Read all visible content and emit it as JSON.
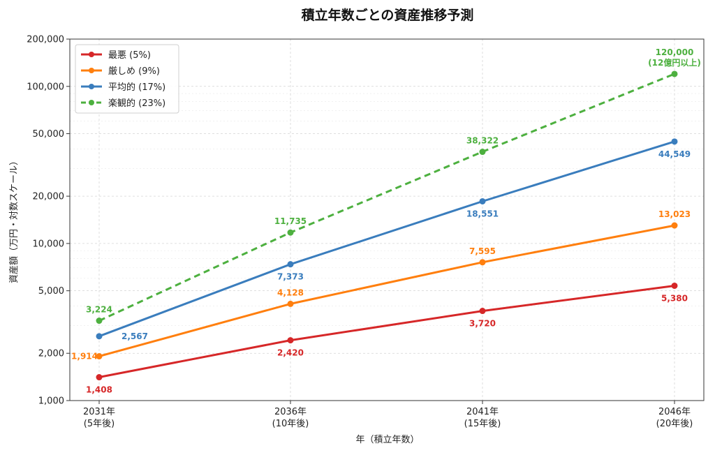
{
  "chart_data": {
    "type": "line",
    "title": "積立年数ごとの資産推移予測",
    "xlabel": "年（積立年数）",
    "ylabel": "資産額（万円・対数スケール）",
    "yscale": "log",
    "ylim": [
      1000,
      200000
    ],
    "yticks": [
      1000,
      2000,
      5000,
      10000,
      20000,
      50000,
      100000,
      200000
    ],
    "ytick_labels": [
      "1,000",
      "2,000",
      "5,000",
      "10,000",
      "20,000",
      "50,000",
      "100,000",
      "200,000"
    ],
    "categories": [
      {
        "line1": "2031年",
        "line2": "(5年後)"
      },
      {
        "line1": "2036年",
        "line2": "(10年後)"
      },
      {
        "line1": "2041年",
        "line2": "(15年後)"
      },
      {
        "line1": "2046年",
        "line2": "(20年後)"
      }
    ],
    "grid": true,
    "legend_position": "top-left",
    "series": [
      {
        "name": "最悪 (5%)",
        "color": "#d62728",
        "dashed": false,
        "values": [
          1408,
          2420,
          3720,
          5380
        ],
        "labels": [
          [
            "1,408"
          ],
          [
            "2,420"
          ],
          [
            "3,720"
          ],
          [
            "5,380"
          ]
        ],
        "label_side": [
          "below",
          "below",
          "below",
          "below"
        ]
      },
      {
        "name": "厳しめ (9%)",
        "color": "#ff7f0e",
        "dashed": false,
        "values": [
          1914,
          4128,
          7595,
          13023
        ],
        "labels": [
          [
            "1,914"
          ],
          [
            "4,128"
          ],
          [
            "7,595"
          ],
          [
            "13,023"
          ]
        ],
        "label_side": [
          "left",
          "above",
          "above",
          "above"
        ]
      },
      {
        "name": "平均的 (17%)",
        "color": "#3a7dbd",
        "dashed": false,
        "values": [
          2567,
          7373,
          18551,
          44549
        ],
        "labels": [
          [
            "2,567"
          ],
          [
            "7,373"
          ],
          [
            "18,551"
          ],
          [
            "44,549"
          ]
        ],
        "label_side": [
          "right",
          "below",
          "below",
          "below"
        ]
      },
      {
        "name": "楽観的 (23%)",
        "color": "#4db03f",
        "dashed": true,
        "values": [
          3224,
          11735,
          38322,
          120000
        ],
        "labels": [
          [
            "3,224"
          ],
          [
            "11,735"
          ],
          [
            "38,322"
          ],
          [
            "120,000",
            "(12億円以上)"
          ]
        ],
        "label_side": [
          "above",
          "above",
          "above",
          "above"
        ]
      }
    ]
  }
}
